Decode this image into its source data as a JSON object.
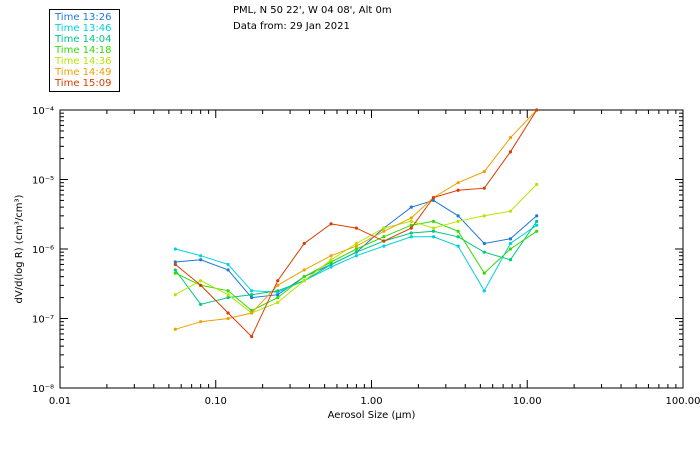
{
  "header": {
    "location": "PML, N 50 22', W 04 08', Alt 0m",
    "date": "Data from: 29 Jan 2021"
  },
  "chart_data": {
    "type": "line",
    "xlabel": "Aerosol Size (µm)",
    "ylabel": "dV/d(log R) (cm³/cm³)",
    "xscale": "log",
    "yscale": "log",
    "xlim": [
      0.01,
      100
    ],
    "ylim": [
      1e-08,
      0.0001
    ],
    "x_ticks": [
      {
        "value": 0.01,
        "label": "0.01"
      },
      {
        "value": 0.1,
        "label": "0.10"
      },
      {
        "value": 1,
        "label": "1.00"
      },
      {
        "value": 10,
        "label": "10.00"
      },
      {
        "value": 100,
        "label": "100.00"
      }
    ],
    "y_ticks": [
      {
        "value": 0.0001,
        "label": "10⁻⁴"
      },
      {
        "value": 1e-05,
        "label": "10⁻⁵"
      },
      {
        "value": 1e-06,
        "label": "10⁻⁶"
      },
      {
        "value": 1e-07,
        "label": "10⁻⁷"
      },
      {
        "value": 1e-08,
        "label": "10⁻⁸"
      }
    ],
    "legend_position": "top-left",
    "x": [
      0.055,
      0.08,
      0.12,
      0.17,
      0.25,
      0.37,
      0.55,
      0.8,
      1.2,
      1.8,
      2.5,
      3.6,
      5.3,
      7.8,
      11.5
    ],
    "series": [
      {
        "name": "Time 13:26",
        "color": "#1e78dc",
        "values": [
          6.5e-07,
          7e-07,
          5e-07,
          2e-07,
          2.2e-07,
          4e-07,
          6e-07,
          9e-07,
          2e-06,
          4e-06,
          5e-06,
          3e-06,
          1.2e-06,
          1.4e-06,
          3e-06
        ]
      },
      {
        "name": "Time 13:46",
        "color": "#00d2dc",
        "values": [
          1e-06,
          8e-07,
          6e-07,
          2.5e-07,
          2.4e-07,
          3.5e-07,
          5.5e-07,
          8e-07,
          1.1e-06,
          1.5e-06,
          1.5e-06,
          1.1e-06,
          2.5e-07,
          1.2e-06,
          2.2e-06
        ]
      },
      {
        "name": "Time 14:04",
        "color": "#00c882",
        "values": [
          5e-07,
          1.6e-07,
          2e-07,
          2.2e-07,
          2.5e-07,
          3.5e-07,
          6e-07,
          9e-07,
          1.3e-06,
          1.7e-06,
          1.8e-06,
          1.5e-06,
          9e-07,
          7e-07,
          2.5e-06
        ]
      },
      {
        "name": "Time 14:18",
        "color": "#32dc00",
        "values": [
          4.5e-07,
          3e-07,
          2.5e-07,
          1.3e-07,
          2e-07,
          4e-07,
          6.5e-07,
          1e-06,
          1.5e-06,
          2.2e-06,
          2.5e-06,
          1.8e-06,
          4.5e-07,
          1e-06,
          1.8e-06
        ]
      },
      {
        "name": "Time 14:36",
        "color": "#b4e600",
        "values": [
          2.2e-07,
          3.5e-07,
          2.2e-07,
          1.2e-07,
          1.7e-07,
          3.5e-07,
          7e-07,
          1.2e-06,
          2e-06,
          2.5e-06,
          2e-06,
          2.5e-06,
          3e-06,
          3.5e-06,
          8.5e-06
        ]
      },
      {
        "name": "Time 14:49",
        "color": "#f0a000",
        "values": [
          7e-08,
          9e-08,
          1e-07,
          1.2e-07,
          3e-07,
          5e-07,
          8e-07,
          1.1e-06,
          1.8e-06,
          2.8e-06,
          5.5e-06,
          9e-06,
          1.3e-05,
          4e-05,
          0.0001
        ]
      },
      {
        "name": "Time 15:09",
        "color": "#dc3c00",
        "values": [
          6e-07,
          3e-07,
          1.2e-07,
          5.5e-08,
          3.5e-07,
          1.2e-06,
          2.3e-06,
          2e-06,
          1.3e-06,
          2e-06,
          5.5e-06,
          7e-06,
          7.5e-06,
          2.5e-05,
          0.0001
        ]
      }
    ]
  }
}
